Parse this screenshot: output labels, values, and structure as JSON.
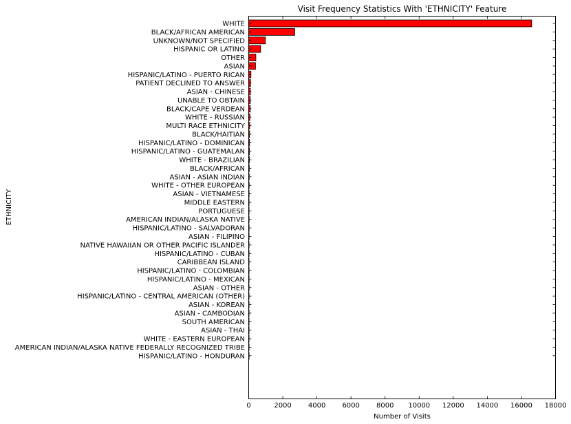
{
  "chart_data": {
    "type": "bar",
    "orientation": "horizontal",
    "title": "Visit Frequency Statistics With 'ETHNICITY' Feature",
    "xlabel": "Number of Visits",
    "ylabel": "ETHNICITY",
    "xlim": [
      0,
      18000
    ],
    "xticks": [
      0,
      2000,
      4000,
      6000,
      8000,
      10000,
      12000,
      14000,
      16000,
      18000
    ],
    "bar_color": "#ff0000",
    "edge_color": "#000000",
    "grid": false,
    "categories": [
      "WHITE",
      "BLACK/AFRICAN AMERICAN",
      "UNKNOWN/NOT SPECIFIED",
      "HISPANIC OR LATINO",
      "OTHER",
      "ASIAN",
      "HISPANIC/LATINO - PUERTO RICAN",
      "PATIENT DECLINED TO ANSWER",
      "ASIAN - CHINESE",
      "UNABLE TO OBTAIN",
      "BLACK/CAPE VERDEAN",
      "WHITE - RUSSIAN",
      "MULTI RACE ETHNICITY",
      "BLACK/HAITIAN",
      "HISPANIC/LATINO - DOMINICAN",
      "HISPANIC/LATINO - GUATEMALAN",
      "WHITE - BRAZILIAN",
      "BLACK/AFRICAN",
      "ASIAN - ASIAN INDIAN",
      "WHITE - OTHER EUROPEAN",
      "ASIAN - VIETNAMESE",
      "MIDDLE EASTERN",
      "PORTUGUESE",
      "AMERICAN INDIAN/ALASKA NATIVE",
      "HISPANIC/LATINO - SALVADORAN",
      "ASIAN - FILIPINO",
      "NATIVE HAWAIIAN OR OTHER PACIFIC ISLANDER",
      "HISPANIC/LATINO - CUBAN",
      "CARIBBEAN ISLAND",
      "HISPANIC/LATINO - COLOMBIAN",
      "HISPANIC/LATINO - MEXICAN",
      "ASIAN - OTHER",
      "HISPANIC/LATINO - CENTRAL AMERICAN (OTHER)",
      "ASIAN - KOREAN",
      "ASIAN - CAMBODIAN",
      "SOUTH AMERICAN",
      "ASIAN - THAI",
      "WHITE - EASTERN EUROPEAN",
      "AMERICAN INDIAN/ALASKA NATIVE FEDERALLY RECOGNIZED TRIBE",
      "HISPANIC/LATINO - HONDURAN"
    ],
    "values": [
      16600,
      2700,
      980,
      700,
      420,
      400,
      130,
      110,
      100,
      95,
      90,
      70,
      60,
      55,
      50,
      45,
      40,
      35,
      30,
      28,
      26,
      22,
      20,
      18,
      16,
      14,
      12,
      11,
      10,
      9,
      8,
      7,
      6,
      5,
      5,
      4,
      3,
      3,
      2,
      1
    ]
  }
}
